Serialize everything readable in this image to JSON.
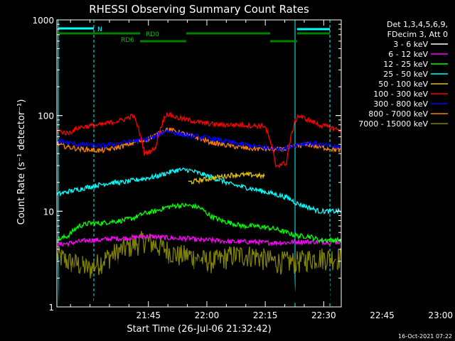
{
  "chart_data": {
    "type": "line",
    "title": "RHESSI Observing Summary Count Rates",
    "xlabel": "Start Time (26-Jul-06 21:32:42)",
    "ylabel": "Count Rate (s⁻¹ detector⁻¹)",
    "y_scale": "log",
    "ylim": [
      1,
      1000
    ],
    "xlim_minutes": [
      21.5,
      94.5
    ],
    "x_ticks": [
      {
        "label": "21:45",
        "minute": 45
      },
      {
        "label": "22:00",
        "minute": 60
      },
      {
        "label": "22:15",
        "minute": 75
      },
      {
        "label": "22:30",
        "minute": 90
      },
      {
        "label": "22:45",
        "minute": 105
      },
      {
        "label": "23:00",
        "minute": 120
      }
    ],
    "y_tick_labels": [
      {
        "label": "1",
        "value": 1
      },
      {
        "label": "10",
        "value": 10
      },
      {
        "label": "100",
        "value": 100
      },
      {
        "label": "1000",
        "value": 1000
      }
    ],
    "legend_position": "right",
    "legend_header": [
      "Det 1,3,4,5,6,9,",
      "FDecim 3, Att 0"
    ],
    "series": [
      {
        "name": "3 - 6 keV",
        "color": "#000000",
        "values": [
          1,
          1,
          1,
          1,
          1,
          1,
          1,
          1,
          1,
          1,
          1,
          1,
          1,
          1,
          1,
          1,
          1,
          1,
          1,
          1,
          1,
          1,
          1,
          1,
          1,
          1,
          1
        ]
      },
      {
        "name": "6 - 12 keV",
        "color": "#ff00ff",
        "values": [
          4.5,
          4.6,
          4.8,
          5.0,
          5.0,
          5.2,
          5.2,
          5.3,
          5.5,
          5.4,
          5.3,
          5.2,
          5.2,
          5.0,
          5.0,
          4.9,
          4.8,
          4.8,
          4.8,
          4.7,
          4.7,
          4.7,
          4.8,
          4.8,
          4.8,
          4.8,
          4.8
        ]
      },
      {
        "name": "12 - 25 keV",
        "color": "#00ff00",
        "values": [
          5.0,
          5.5,
          7.0,
          7.5,
          7.5,
          7.8,
          8.0,
          8.5,
          9.5,
          10.0,
          11.0,
          11.5,
          11.5,
          11.0,
          9.0,
          8.0,
          7.5,
          7.0,
          7.0,
          6.8,
          6.5,
          6.0,
          5.5,
          5.5,
          5.0,
          5.0,
          5.0
        ]
      },
      {
        "name": "25 - 50 keV",
        "color": "#00ffff",
        "values": [
          15,
          16,
          17,
          18,
          19,
          20,
          20,
          21,
          22,
          23,
          25,
          27,
          27,
          25,
          23,
          21,
          19,
          18,
          17,
          16,
          15,
          14,
          12,
          11,
          10,
          10,
          10
        ]
      },
      {
        "name": "50 - 100 keV",
        "color": "#e0c000",
        "values": [
          null,
          null,
          null,
          null,
          null,
          null,
          null,
          null,
          null,
          null,
          null,
          null,
          20,
          21,
          22,
          23,
          24,
          24,
          24,
          23,
          null,
          null,
          null,
          null,
          null,
          null,
          null
        ]
      },
      {
        "name": "100 - 300 keV",
        "color": "#ff0000",
        "values": [
          70,
          65,
          75,
          78,
          80,
          85,
          90,
          100,
          40,
          45,
          105,
          95,
          90,
          85,
          82,
          80,
          80,
          80,
          78,
          78,
          30,
          32,
          100,
          90,
          80,
          75,
          70
        ]
      },
      {
        "name": "300 - 800 keV",
        "color": "#0000ff",
        "values": [
          55,
          52,
          50,
          49,
          48,
          50,
          52,
          54,
          56,
          60,
          70,
          65,
          62,
          60,
          58,
          55,
          52,
          50,
          48,
          46,
          45,
          46,
          50,
          52,
          50,
          48,
          46
        ]
      },
      {
        "name": "800 - 7000 keV",
        "color": "#ff8000",
        "values": [
          50,
          47,
          45,
          44,
          43,
          45,
          48,
          52,
          55,
          62,
          72,
          68,
          62,
          58,
          53,
          50,
          48,
          46,
          45,
          45,
          44,
          45,
          48,
          50,
          47,
          45,
          43
        ]
      },
      {
        "name": "7000 - 15000 keV",
        "color": "#808000",
        "values": [
          3.5,
          3.0,
          2.8,
          2.5,
          3.0,
          3.5,
          4.0,
          4.5,
          5.0,
          4.5,
          4.0,
          3.5,
          3.5,
          3.2,
          3.0,
          3.2,
          3.5,
          3.5,
          3.5,
          3.2,
          3.0,
          3.0,
          3.0,
          3.2,
          3.3,
          3.3,
          3.3
        ]
      }
    ],
    "top_bars": [
      {
        "label": "N",
        "color": "#00ffff"
      },
      {
        "label": "RD0",
        "color": "#008000"
      },
      {
        "label": "RD6",
        "color": "#008000"
      }
    ]
  },
  "timestamp": "16-Oct-2021 07:22"
}
